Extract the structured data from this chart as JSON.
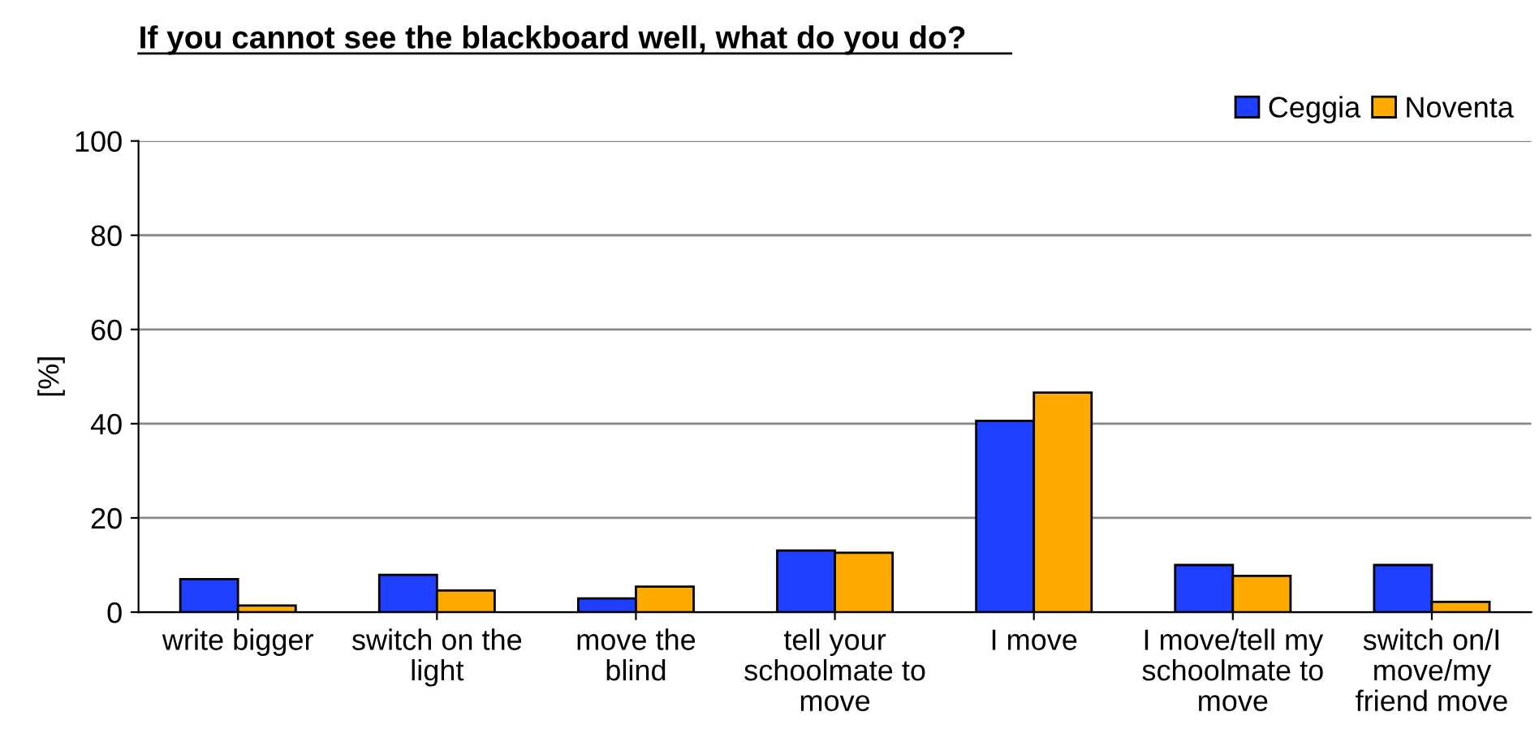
{
  "chart_data": {
    "type": "bar",
    "title": "If you cannot see the blackboard well, what do you do?",
    "ylabel": "[%]",
    "categories": [
      "write bigger",
      "switch on the light",
      "move the blind",
      "tell your schoolmate to move",
      "I move",
      "I move/tell my schoolmate to move",
      "switch on/I move/my friend move"
    ],
    "series": [
      {
        "name": "Ceggia",
        "color": "#1f3fff",
        "values": [
          7.0,
          7.9,
          2.9,
          13.1,
          40.6,
          10.0,
          10.0
        ]
      },
      {
        "name": "Noventa",
        "color": "#ffaa00",
        "values": [
          1.4,
          4.6,
          5.4,
          12.6,
          46.6,
          7.7,
          2.2
        ]
      }
    ],
    "ylim": [
      0,
      100
    ],
    "yticks": [
      0,
      20,
      40,
      60,
      80,
      100
    ],
    "grid": "y",
    "legend": "top right"
  }
}
